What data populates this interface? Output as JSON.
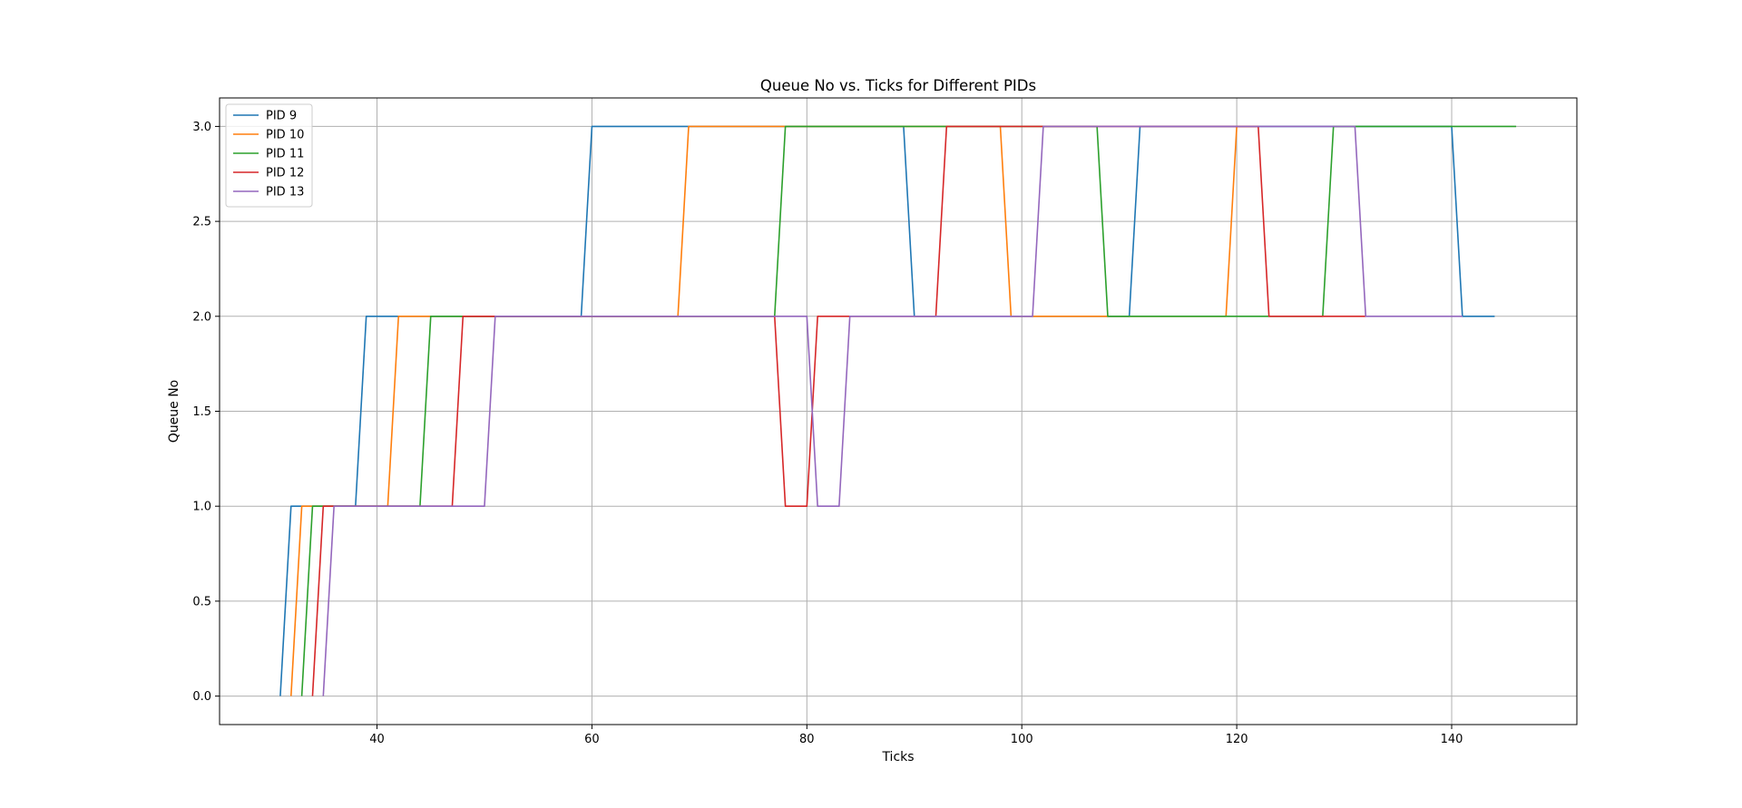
{
  "chart_data": {
    "type": "line",
    "title": "Queue No vs. Ticks for Different PIDs",
    "xlabel": "Ticks",
    "ylabel": "Queue No",
    "xlim": [
      25.35,
      151.65
    ],
    "ylim": [
      -0.15,
      3.15
    ],
    "xticks": [
      40,
      60,
      80,
      100,
      120,
      140
    ],
    "xtick_labels": [
      "40",
      "60",
      "80",
      "100",
      "120",
      "140"
    ],
    "yticks": [
      0,
      0.5,
      1,
      1.5,
      2,
      2.5,
      3
    ],
    "ytick_labels": [
      "0.0",
      "0.5",
      "1.0",
      "1.5",
      "2.0",
      "2.5",
      "3.0"
    ],
    "grid": true,
    "legend_position": "upper-left",
    "series": [
      {
        "name": "PID 9",
        "color": "#1f77b4",
        "points": [
          [
            31,
            0
          ],
          [
            32,
            1
          ],
          [
            38,
            1
          ],
          [
            39,
            2
          ],
          [
            59,
            2
          ],
          [
            60,
            3
          ],
          [
            89,
            3
          ],
          [
            90,
            2
          ],
          [
            110,
            2
          ],
          [
            111,
            3
          ],
          [
            140,
            3
          ],
          [
            141,
            2
          ],
          [
            144,
            2
          ]
        ]
      },
      {
        "name": "PID 10",
        "color": "#ff7f0e",
        "points": [
          [
            32,
            0
          ],
          [
            33,
            1
          ],
          [
            41,
            1
          ],
          [
            42,
            2
          ],
          [
            68,
            2
          ],
          [
            69,
            3
          ],
          [
            98,
            3
          ],
          [
            99,
            2
          ],
          [
            119,
            2
          ],
          [
            120,
            3
          ],
          [
            122,
            3
          ]
        ]
      },
      {
        "name": "PID 11",
        "color": "#2ca02c",
        "points": [
          [
            33,
            0
          ],
          [
            34,
            1
          ],
          [
            44,
            1
          ],
          [
            45,
            2
          ],
          [
            77,
            2
          ],
          [
            78,
            3
          ],
          [
            107,
            3
          ],
          [
            108,
            2
          ],
          [
            128,
            2
          ],
          [
            129,
            3
          ],
          [
            146,
            3
          ]
        ]
      },
      {
        "name": "PID 12",
        "color": "#d62728",
        "points": [
          [
            34,
            0
          ],
          [
            35,
            1
          ],
          [
            47,
            1
          ],
          [
            48,
            2
          ],
          [
            77,
            2
          ],
          [
            78,
            1
          ],
          [
            80,
            1
          ],
          [
            81,
            2
          ],
          [
            92,
            2
          ],
          [
            93,
            3
          ],
          [
            122,
            3
          ],
          [
            123,
            2
          ],
          [
            132,
            2
          ]
        ]
      },
      {
        "name": "PID 13",
        "color": "#9467bd",
        "points": [
          [
            35,
            0
          ],
          [
            36,
            1
          ],
          [
            50,
            1
          ],
          [
            51,
            2
          ],
          [
            80,
            2
          ],
          [
            81,
            1
          ],
          [
            83,
            1
          ],
          [
            84,
            2
          ],
          [
            101,
            2
          ],
          [
            102,
            3
          ],
          [
            131,
            3
          ],
          [
            132,
            2
          ],
          [
            141,
            2
          ]
        ]
      }
    ]
  }
}
